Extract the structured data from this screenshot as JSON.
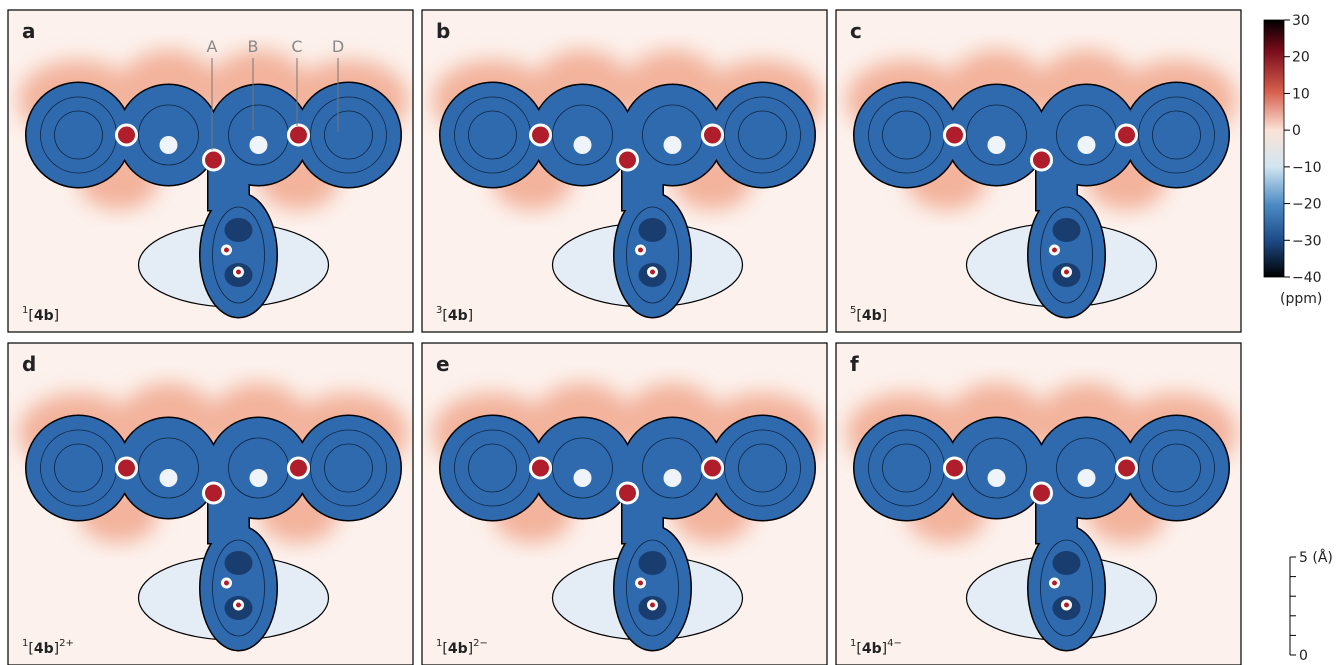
{
  "panels": [
    {
      "letter": "a",
      "species": {
        "multiplicity": "1",
        "open": "[",
        "name": "4b",
        "close": "]"
      },
      "ring_labels": [
        "A",
        "B",
        "C",
        "D"
      ]
    },
    {
      "letter": "b",
      "species": {
        "multiplicity": "3",
        "open": "[",
        "name": "4b",
        "close": "]"
      }
    },
    {
      "letter": "c",
      "species": {
        "multiplicity": "5",
        "open": "[",
        "name": "4b",
        "close": "]"
      }
    },
    {
      "letter": "d",
      "species": {
        "multiplicity": "1",
        "open": "[",
        "name": "4b",
        "close": "]",
        "charge": "2+"
      }
    },
    {
      "letter": "e",
      "species": {
        "multiplicity": "1",
        "open": "[",
        "name": "4b",
        "close": "]",
        "charge": "2−"
      }
    },
    {
      "letter": "f",
      "species": {
        "multiplicity": "1",
        "open": "[",
        "name": "4b",
        "close": "]",
        "charge": "4−"
      }
    }
  ],
  "colorbar": {
    "lim": [
      -40,
      30
    ],
    "ticks": [
      30,
      20,
      10,
      0,
      {
        "value": -10,
        "label": "−10"
      },
      {
        "value": -20,
        "label": "−20"
      },
      {
        "value": -30,
        "label": "−30"
      },
      {
        "value": -40,
        "label": "−40"
      }
    ],
    "unit": "(ppm)"
  },
  "scale_bar": {
    "top_label": "5 (Å)",
    "bottom_label": "0"
  }
}
